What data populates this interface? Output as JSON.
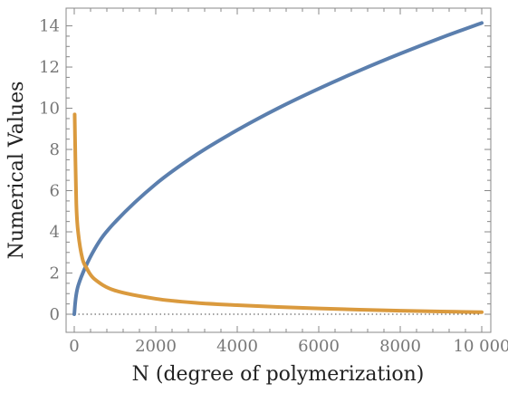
{
  "chart_data": {
    "type": "line",
    "xlabel": "N (degree of polymerization)",
    "ylabel": "Numerical Values",
    "xlim": [
      0,
      10000
    ],
    "ylim": [
      0,
      14.2
    ],
    "xticks": [
      0,
      2000,
      4000,
      6000,
      8000,
      10000
    ],
    "xtick_labels": [
      "0",
      "2000",
      "4000",
      "6000",
      "8000",
      "10 000"
    ],
    "yticks": [
      0,
      2,
      4,
      6,
      8,
      10,
      12,
      14
    ],
    "ytick_labels": [
      "0",
      "2",
      "4",
      "6",
      "8",
      "10",
      "12",
      "14"
    ],
    "grid": false,
    "series": [
      {
        "color": "#5b7fae",
        "x": [
          0,
          100,
          500,
          1000,
          2000,
          3000,
          4000,
          5000,
          6000,
          7000,
          8000,
          9000,
          10000
        ],
        "y": [
          0,
          1.41,
          3.16,
          4.47,
          6.32,
          7.75,
          8.94,
          10.0,
          10.95,
          11.83,
          12.65,
          13.42,
          14.14
        ]
      },
      {
        "color": "#da9a3e",
        "x": [
          10,
          50,
          100,
          200,
          300,
          500,
          1000,
          2000,
          3000,
          4000,
          5000,
          6000,
          7000,
          8000,
          9000,
          10000
        ],
        "y": [
          9.7,
          5.4,
          3.9,
          2.7,
          2.25,
          1.7,
          1.15,
          0.75,
          0.55,
          0.44,
          0.35,
          0.28,
          0.22,
          0.17,
          0.13,
          0.1
        ]
      }
    ]
  }
}
